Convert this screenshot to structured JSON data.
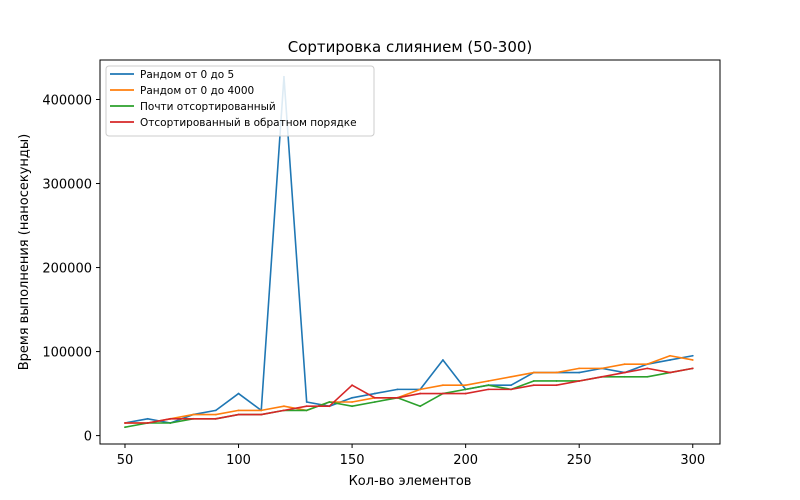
{
  "chart_data": {
    "type": "line",
    "title": "Сортировка слиянием (50-300)",
    "xlabel": "Кол-во элементов",
    "ylabel": "Время выполнения (наносекунды)",
    "xlim": [
      39,
      312
    ],
    "ylim": [
      -10000,
      447000
    ],
    "xticks": [
      50,
      100,
      150,
      200,
      250,
      300
    ],
    "yticks": [
      0,
      100000,
      200000,
      300000,
      400000
    ],
    "grid": false,
    "legend_position": "top-left",
    "x": [
      50,
      60,
      70,
      80,
      90,
      100,
      110,
      120,
      130,
      140,
      150,
      160,
      170,
      180,
      190,
      200,
      210,
      220,
      230,
      240,
      250,
      260,
      270,
      280,
      290,
      300
    ],
    "series": [
      {
        "name": "Рандом от 0 до 5",
        "color": "#1f77b4",
        "values": [
          15000,
          20000,
          15000,
          25000,
          30000,
          50000,
          30000,
          427000,
          40000,
          35000,
          45000,
          50000,
          55000,
          55000,
          90000,
          55000,
          60000,
          60000,
          75000,
          75000,
          75000,
          80000,
          75000,
          85000,
          90000,
          95000
        ]
      },
      {
        "name": "Рандом от 0 до 4000",
        "color": "#ff7f0e",
        "values": [
          15000,
          15000,
          20000,
          25000,
          25000,
          30000,
          30000,
          35000,
          30000,
          40000,
          40000,
          45000,
          45000,
          55000,
          60000,
          60000,
          65000,
          70000,
          75000,
          75000,
          80000,
          80000,
          85000,
          85000,
          95000,
          90000
        ]
      },
      {
        "name": "Почти отсортированный",
        "color": "#2ca02c",
        "values": [
          10000,
          15000,
          15000,
          20000,
          20000,
          25000,
          25000,
          30000,
          30000,
          40000,
          35000,
          40000,
          45000,
          35000,
          50000,
          55000,
          60000,
          55000,
          65000,
          65000,
          65000,
          70000,
          70000,
          70000,
          75000,
          80000
        ]
      },
      {
        "name": "Отсортированный в обратном порядке",
        "color": "#d62728",
        "values": [
          15000,
          15000,
          20000,
          20000,
          20000,
          25000,
          25000,
          30000,
          35000,
          35000,
          60000,
          45000,
          45000,
          50000,
          50000,
          50000,
          55000,
          55000,
          60000,
          60000,
          65000,
          70000,
          75000,
          80000,
          75000,
          80000
        ]
      }
    ]
  }
}
